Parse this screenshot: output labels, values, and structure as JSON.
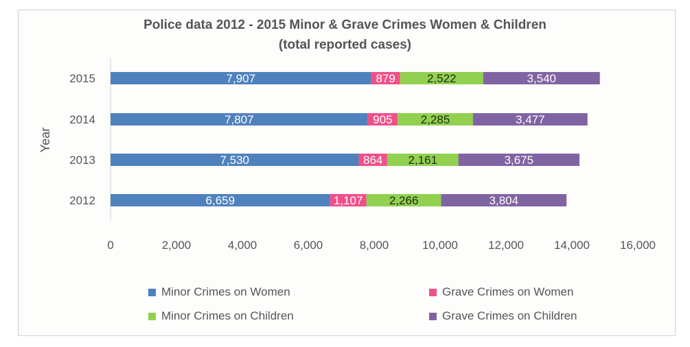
{
  "chart_data": {
    "type": "bar",
    "orientation": "horizontal",
    "stacked": true,
    "title": "Police data 2012 - 2015 Minor & Grave Crimes Women & Children",
    "subtitle": "(total reported cases)",
    "ylabel": "Year",
    "xlabel": "",
    "categories": [
      "2012",
      "2013",
      "2014",
      "2015"
    ],
    "series": [
      {
        "name": "Minor Crimes on Women",
        "values": [
          6659,
          7530,
          7807,
          7907
        ],
        "labels": [
          "6,659",
          "7,530",
          "7,807",
          "7,907"
        ],
        "color": "#4f81bd",
        "label_color": "#ffffff"
      },
      {
        "name": "Grave Crimes on Women",
        "values": [
          1107,
          864,
          905,
          879
        ],
        "labels": [
          "1,107",
          "864",
          "905",
          "879"
        ],
        "color": "#f0508a",
        "label_color": "#ffffff"
      },
      {
        "name": "Minor Crimes on Children",
        "values": [
          2266,
          2161,
          2285,
          2522
        ],
        "labels": [
          "2,266",
          "2,161",
          "2,285",
          "2,522"
        ],
        "color": "#92d050",
        "label_color": "#1f2a12"
      },
      {
        "name": "Grave Crimes on Children",
        "values": [
          3804,
          3675,
          3477,
          3540
        ],
        "labels": [
          "3,804",
          "3,675",
          "3,477",
          "3,540"
        ],
        "color": "#8064a2",
        "label_color": "#ffffff"
      }
    ],
    "xlim": [
      0,
      16000
    ],
    "xticks": [
      0,
      2000,
      4000,
      6000,
      8000,
      10000,
      12000,
      14000,
      16000
    ],
    "xtick_labels": [
      "0",
      "2,000",
      "4,000",
      "6,000",
      "8,000",
      "10,000",
      "12,000",
      "14,000",
      "16,000"
    ],
    "grid": false,
    "legend_position": "bottom"
  }
}
